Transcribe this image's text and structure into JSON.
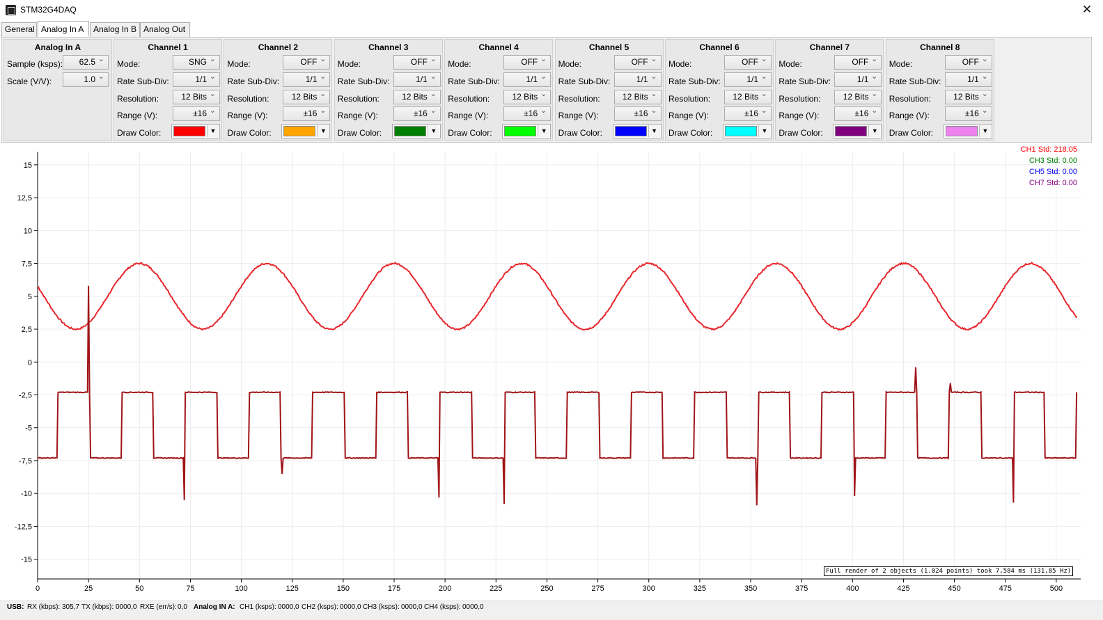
{
  "window": {
    "title": "STM32G4DAQ",
    "close_glyph": "✕"
  },
  "tabs": [
    "General",
    "Analog In A",
    "Analog In B",
    "Analog Out"
  ],
  "analog_in": {
    "title": "Analog In A",
    "sample_label": "Sample (ksps):",
    "sample_value": "62.5",
    "scale_label": "Scale (V/V):",
    "scale_value": "1.0"
  },
  "labels": {
    "mode": "Mode:",
    "rate": "Rate Sub-Div:",
    "resolution": "Resolution:",
    "range": "Range (V):",
    "color": "Draw Color:",
    "dropdown_glyph": "▼"
  },
  "channels": [
    {
      "title": "Channel 1",
      "mode": "SNG",
      "rate": "1/1",
      "resolution": "12 Bits",
      "range": "±16",
      "color": "#ff0000"
    },
    {
      "title": "Channel 2",
      "mode": "OFF",
      "rate": "1/1",
      "resolution": "12 Bits",
      "range": "±16",
      "color": "#ffa500"
    },
    {
      "title": "Channel 3",
      "mode": "OFF",
      "rate": "1/1",
      "resolution": "12 Bits",
      "range": "±16",
      "color": "#008000"
    },
    {
      "title": "Channel 4",
      "mode": "OFF",
      "rate": "1/1",
      "resolution": "12 Bits",
      "range": "±16",
      "color": "#00ff00"
    },
    {
      "title": "Channel 5",
      "mode": "OFF",
      "rate": "1/1",
      "resolution": "12 Bits",
      "range": "±16",
      "color": "#0000ff"
    },
    {
      "title": "Channel 6",
      "mode": "OFF",
      "rate": "1/1",
      "resolution": "12 Bits",
      "range": "±16",
      "color": "#00ffff"
    },
    {
      "title": "Channel 7",
      "mode": "OFF",
      "rate": "1/1",
      "resolution": "12 Bits",
      "range": "±16",
      "color": "#800080"
    },
    {
      "title": "Channel 8",
      "mode": "OFF",
      "rate": "1/1",
      "resolution": "12 Bits",
      "range": "±16",
      "color": "#ee82ee"
    }
  ],
  "chart_data": {
    "type": "line",
    "xlim": [
      0,
      512
    ],
    "ylim": [
      -16.5,
      16
    ],
    "x_ticks": [
      "0",
      "25",
      "50",
      "75",
      "100",
      "125",
      "150",
      "175",
      "200",
      "225",
      "250",
      "275",
      "300",
      "325",
      "350",
      "375",
      "400",
      "425",
      "450",
      "475",
      "500"
    ],
    "y_ticks": [
      "15",
      "12,5",
      "10",
      "7,5",
      "5",
      "2,5",
      "0",
      "-2,5",
      "-5",
      "-7,5",
      "-10",
      "-12,5",
      "-15"
    ],
    "y_tick_values": [
      15,
      12.5,
      10,
      7.5,
      5,
      2.5,
      0,
      -2.5,
      -5,
      -7.5,
      -10,
      -12.5,
      -15
    ],
    "grid": true,
    "legend_position": "top-right",
    "std_labels": [
      {
        "text": "CH1 Std: 218.05",
        "color": "#ff0000"
      },
      {
        "text": "CH3 Std: 0.00",
        "color": "#008000"
      },
      {
        "text": "CH5 Std: 0.00",
        "color": "#0000ff"
      },
      {
        "text": "CH7 Std: 0.00",
        "color": "#800080"
      }
    ],
    "series": [
      {
        "color": "#e8262c",
        "waveform": "sine",
        "offset": 5.0,
        "amplitude": 2.5,
        "period": 62.5,
        "peaks_at": [
          50,
          112.5,
          175,
          237.5,
          300,
          362.5,
          425,
          487.5
        ],
        "x_range": [
          0,
          510
        ],
        "start_value": 5.8,
        "end_value": 3.0
      },
      {
        "color": "#a01418",
        "waveform": "square",
        "high": -2.3,
        "low": -7.3,
        "period": 31.25,
        "x_range": [
          0,
          510
        ],
        "spikes": [
          {
            "x": 25,
            "y": 5.8
          },
          {
            "x": 72,
            "y": -10.5
          },
          {
            "x": 120,
            "y": -8.5
          },
          {
            "x": 197,
            "y": -10.3
          },
          {
            "x": 229,
            "y": -10.8
          },
          {
            "x": 353,
            "y": -10.9
          },
          {
            "x": 401,
            "y": -10.2
          },
          {
            "x": 431,
            "y": -0.4
          },
          {
            "x": 448,
            "y": -1.6
          },
          {
            "x": 479,
            "y": -10.7
          }
        ]
      }
    ]
  },
  "render_note": "Full render of 2 objects (1.024 points) took 7,584 ms (131,85 Hz)",
  "status": {
    "usb": "USB:",
    "rx": "RX (kbps):",
    "rx_value": "305,7",
    "tx": "TX (kbps):",
    "tx_value": "0000,0",
    "rxe": "RXE (err/s):",
    "rxe_value": "0,0",
    "analog": "Analog IN A:",
    "ch1": "CH1 (ksps):",
    "ch1_value": "0000,0",
    "ch2": "CH2 (ksps):",
    "ch2_value": "0000,0",
    "ch3": "CH3 (ksps):",
    "ch3_value": "0000,0",
    "ch4": "CH4 (ksps):",
    "ch4_value": "0000,0"
  }
}
